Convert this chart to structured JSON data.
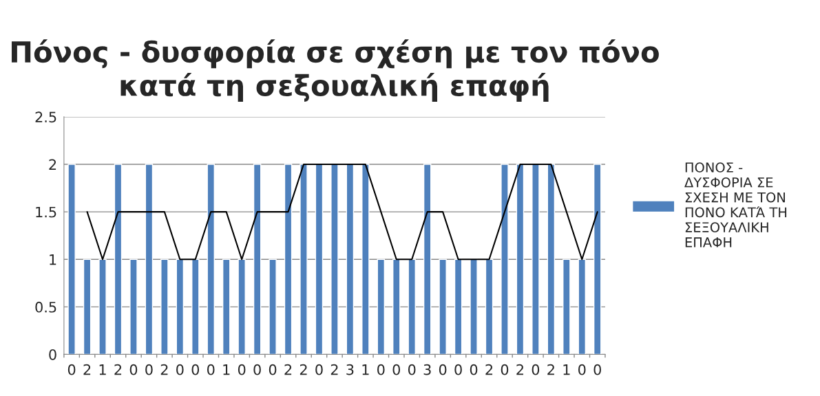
{
  "chart_data": {
    "type": "bar",
    "title": "Πόνος - δυσφορία σε σχέση με τον πόνο\nκατά τη σεξουαλική επαφή",
    "categories": [
      "0",
      "2",
      "1",
      "2",
      "0",
      "0",
      "2",
      "0",
      "0",
      "0",
      "1",
      "0",
      "0",
      "0",
      "2",
      "2",
      "0",
      "2",
      "3",
      "1",
      "0",
      "0",
      "0",
      "3",
      "0",
      "0",
      "0",
      "2",
      "0",
      "2",
      "0",
      "2",
      "1",
      "0",
      "0"
    ],
    "series": [
      {
        "name": "ΠΟΝΟΣ - ΔΥΣΦΟΡΙΑ ΣΕ ΣΧΕΣΗ ΜΕ ΤΟΝ ΠΟΝΟ ΚΑΤΆ ΤΗ ΣΕΞΟΥΑΛΙΚΗ ΕΠΑΦΗ",
        "color": "#4f81bd",
        "values": [
          2,
          1,
          1,
          2,
          1,
          2,
          1,
          1,
          1,
          2,
          1,
          1,
          2,
          1,
          2,
          2,
          2,
          2,
          2,
          2,
          1,
          1,
          1,
          2,
          1,
          1,
          1,
          1,
          2,
          2,
          2,
          2,
          1,
          1,
          2
        ]
      },
      {
        "type": "line",
        "color": "#000000",
        "values": [
          null,
          1.5,
          1,
          1.5,
          1.5,
          1.5,
          1.5,
          1,
          1,
          1.5,
          1.5,
          1,
          1.5,
          1.5,
          1.5,
          2,
          2,
          2,
          2,
          2,
          1.5,
          1,
          1,
          1.5,
          1.5,
          1,
          1,
          1,
          1.5,
          2,
          2,
          2,
          1.5,
          1,
          1.5
        ]
      }
    ],
    "ylim": [
      0,
      2.5
    ],
    "yticks": [
      0,
      0.5,
      1,
      1.5,
      2,
      2.5
    ],
    "grid": "y",
    "legend": "right"
  }
}
